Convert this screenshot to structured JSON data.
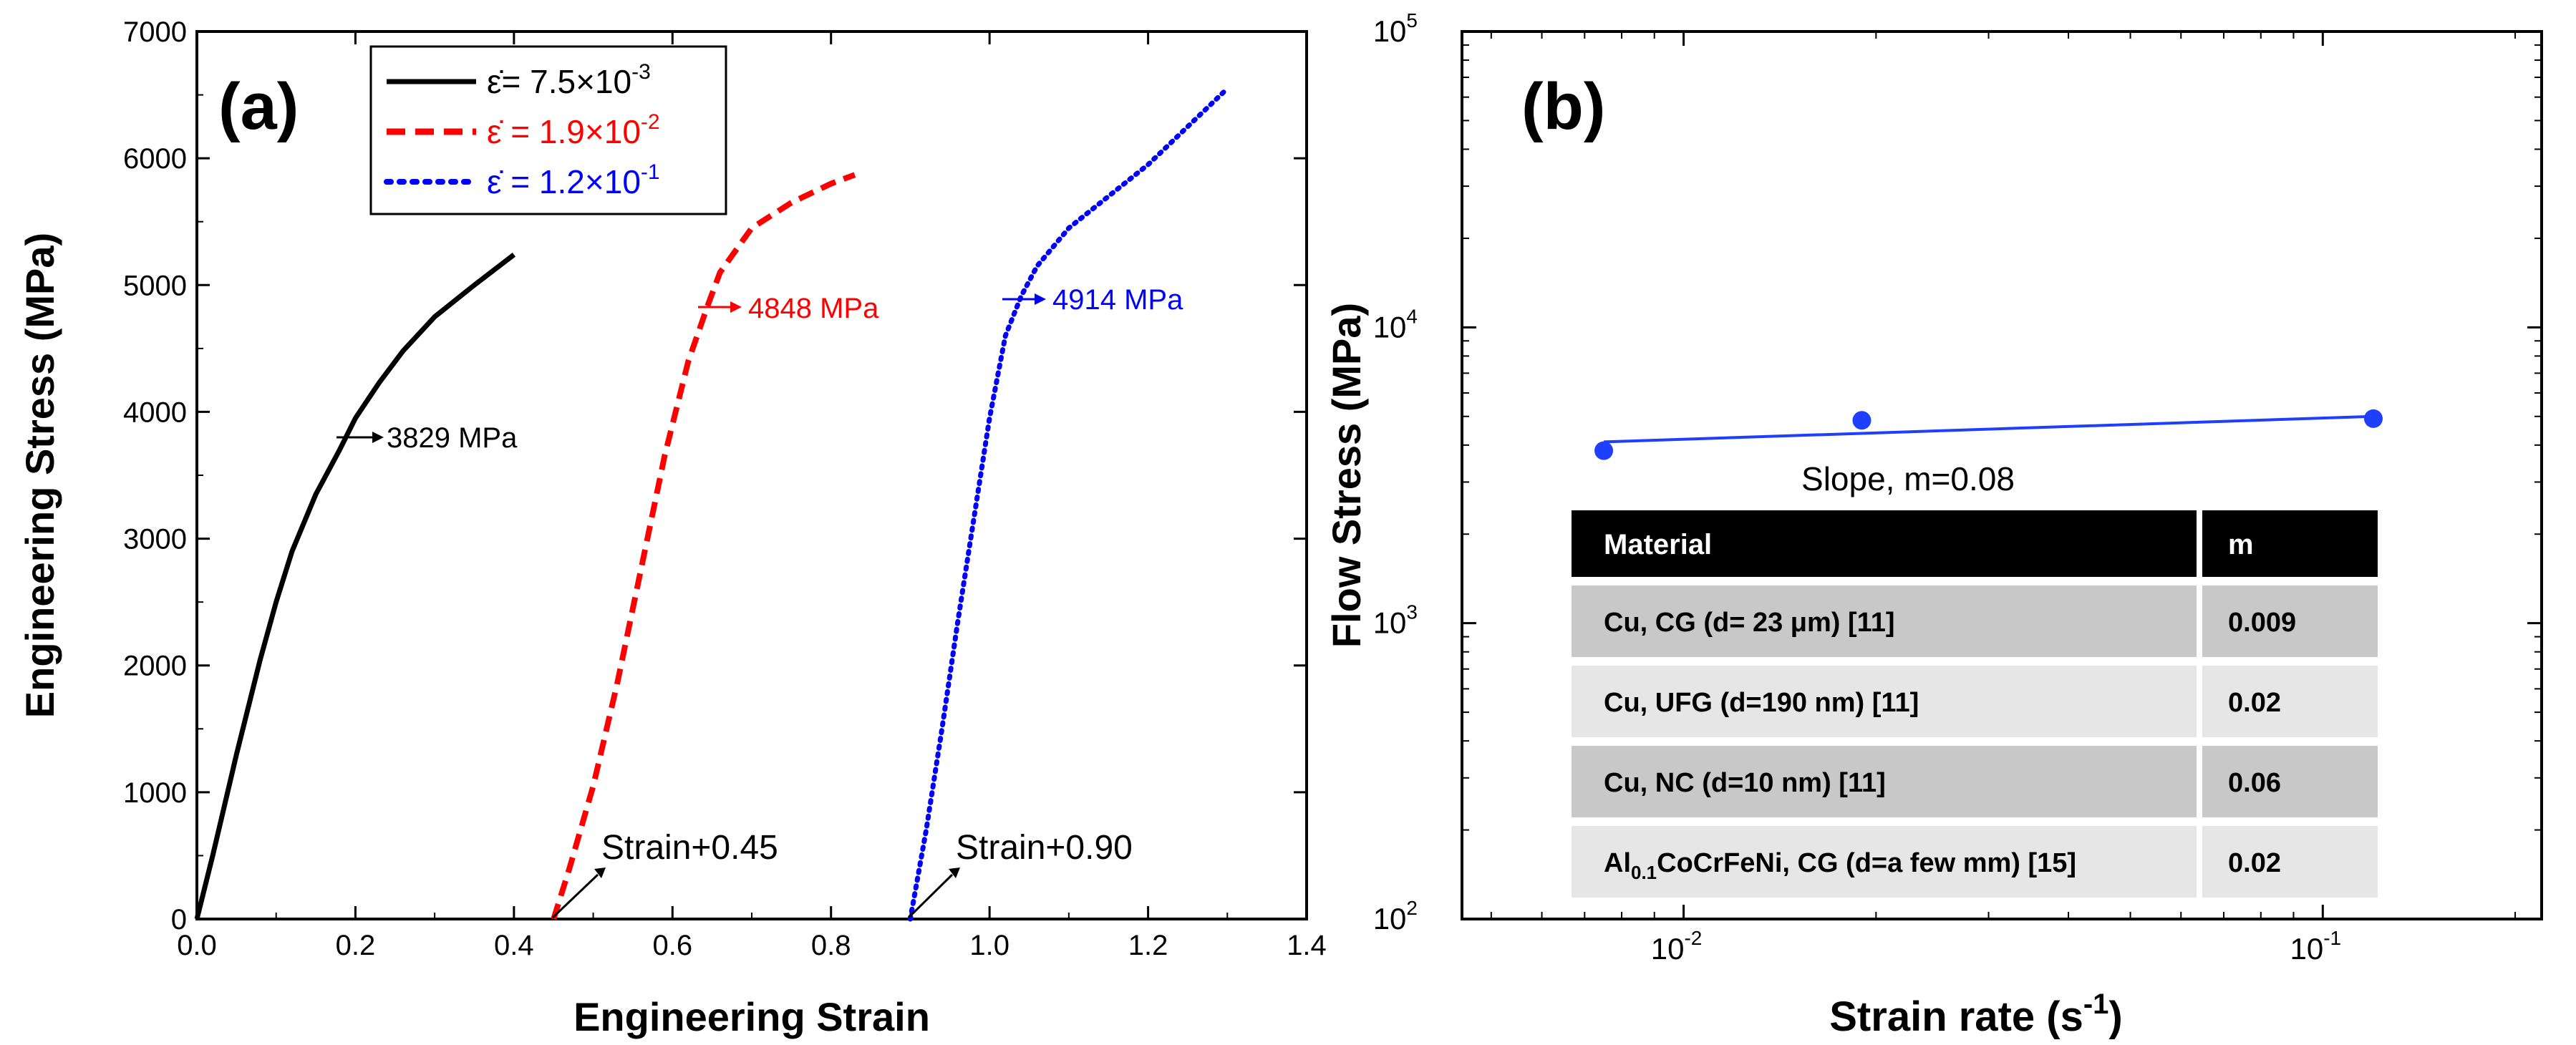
{
  "chart_data": [
    {
      "type": "line",
      "panel_label": "(a)",
      "xlabel": "Engineering Strain",
      "ylabel": "Engineering Stress (MPa)",
      "xlim": [
        0.0,
        1.4
      ],
      "ylim": [
        0,
        7000
      ],
      "xticks": [
        "0.0",
        "0.2",
        "0.4",
        "0.6",
        "0.8",
        "1.0",
        "1.2",
        "1.4"
      ],
      "yticks": [
        "0",
        "1000",
        "2000",
        "3000",
        "4000",
        "5000",
        "6000",
        "7000"
      ],
      "legend": {
        "position": "top-left",
        "entries": [
          {
            "prefix": "ε̇= 7.5×10",
            "exp": "-3",
            "color": "#000000",
            "style": "solid"
          },
          {
            "prefix": "ε̇ = 1.9×10",
            "exp": "-2",
            "color": "#ff0000",
            "style": "dashed"
          },
          {
            "prefix": "ε̇ = 1.2×10",
            "exp": "-1",
            "color": "#0000ff",
            "style": "dotted"
          }
        ]
      },
      "series": [
        {
          "name": "7.5e-3",
          "color": "#000000",
          "style": "solid",
          "x": [
            0.0,
            0.02,
            0.05,
            0.08,
            0.1,
            0.12,
            0.15,
            0.18,
            0.2,
            0.23,
            0.26,
            0.3,
            0.35,
            0.4
          ],
          "y": [
            0,
            500,
            1300,
            2050,
            2500,
            2900,
            3350,
            3700,
            3950,
            4230,
            4480,
            4750,
            5000,
            5240
          ]
        },
        {
          "name": "1.9e-2",
          "color": "#ff0000",
          "style": "dashed",
          "x": [
            0.45,
            0.47,
            0.5,
            0.53,
            0.56,
            0.59,
            0.62,
            0.645,
            0.66,
            0.7,
            0.75,
            0.8,
            0.83
          ],
          "y": [
            0,
            400,
            1050,
            1850,
            2750,
            3650,
            4400,
            4848,
            5100,
            5450,
            5650,
            5800,
            5870
          ]
        },
        {
          "name": "1.2e-1",
          "color": "#0000ff",
          "style": "dotted",
          "x": [
            0.9,
            0.92,
            0.94,
            0.96,
            0.98,
            1.0,
            1.02,
            1.04,
            1.06,
            1.1,
            1.15,
            1.2,
            1.25,
            1.3
          ],
          "y": [
            0,
            700,
            1500,
            2350,
            3150,
            3950,
            4600,
            4914,
            5150,
            5450,
            5700,
            5950,
            6250,
            6550
          ]
        }
      ],
      "annotations": [
        {
          "text": "3829 MPa",
          "color": "#000000",
          "x": 0.19,
          "y": 3829
        },
        {
          "text": "4848 MPa",
          "color": "#ff0000",
          "x": 0.64,
          "y": 4848
        },
        {
          "text": "4914 MPa",
          "color": "#0000ff",
          "x": 1.04,
          "y": 4914
        },
        {
          "text": "Strain+0.45",
          "color": "#000000",
          "x": 0.45,
          "y": 0
        },
        {
          "text": "Strain+0.90",
          "color": "#000000",
          "x": 0.9,
          "y": 0
        }
      ]
    },
    {
      "type": "scatter",
      "panel_label": "(b)",
      "xlabel_prefix": "Strain rate (s",
      "xlabel_exp": "-1",
      "xlabel_suffix": ")",
      "ylabel": "Flow Stress (MPa)",
      "xscale": "log",
      "yscale": "log",
      "xlim": [
        0.0045,
        0.22
      ],
      "ylim": [
        100,
        100000
      ],
      "xticks": [
        {
          "base": "10",
          "exp": "-2",
          "value": 0.01
        },
        {
          "base": "10",
          "exp": "-1",
          "value": 0.1
        }
      ],
      "yticks": [
        {
          "base": "10",
          "exp": "2",
          "value": 100
        },
        {
          "base": "10",
          "exp": "3",
          "value": 1000
        },
        {
          "base": "10",
          "exp": "4",
          "value": 10000
        },
        {
          "base": "10",
          "exp": "5",
          "value": 100000
        }
      ],
      "series": [
        {
          "name": "Flow stress",
          "color": "#1f3fff",
          "x": [
            0.0075,
            0.019,
            0.12
          ],
          "y": [
            3829,
            4848,
            4914
          ]
        }
      ],
      "fit": {
        "label": "Slope, m=0.08",
        "slope": 0.08,
        "x": [
          0.0075,
          0.12
        ],
        "y": [
          4100,
          5000
        ]
      },
      "table": {
        "headers": [
          "Material",
          "m"
        ],
        "rows": [
          {
            "material": "Cu, CG (d= 23 μm) [11]",
            "m": "0.009"
          },
          {
            "material": "Cu, UFG (d=190 nm) [11]",
            "m": "0.02"
          },
          {
            "material": "Cu, NC (d=10 nm) [11]",
            "m": "0.06"
          },
          {
            "material_prefix": "Al",
            "material_sub": "0.1",
            "material_suffix": "CoCrFeNi, CG (d=a few mm) [15]",
            "m": "0.02"
          }
        ]
      }
    }
  ]
}
